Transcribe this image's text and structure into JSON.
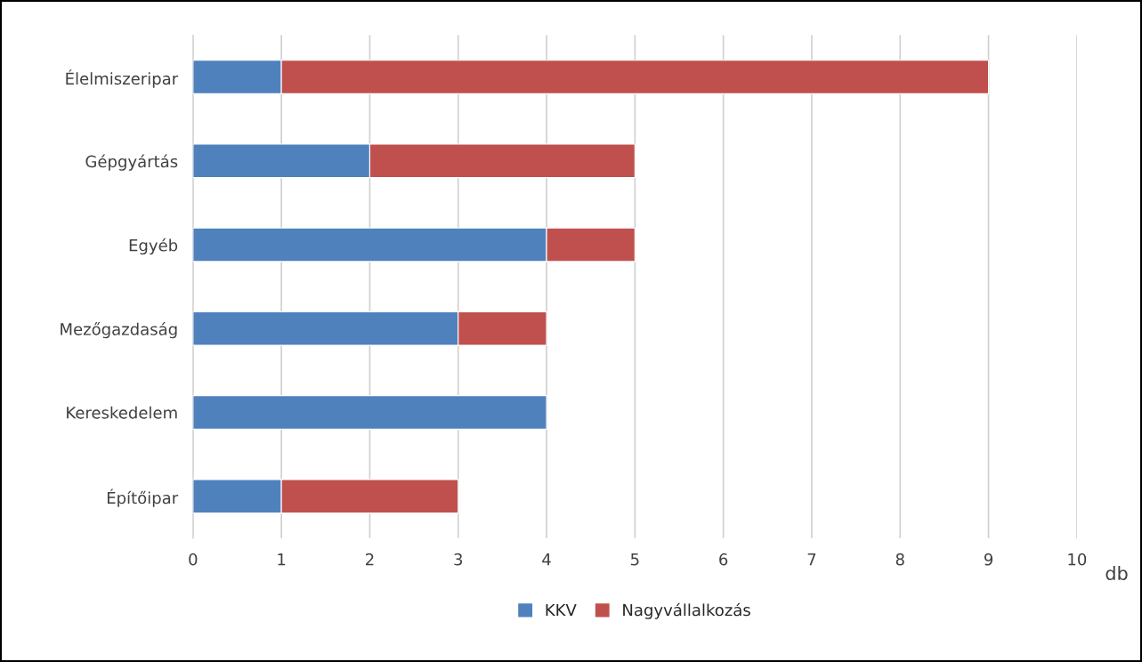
{
  "chart_data": {
    "type": "bar",
    "orientation": "horizontal",
    "stacked": true,
    "categories": [
      "Élelmiszeripar",
      "Gépgyártás",
      "Egyéb",
      "Mezőgazdaság",
      "Kereskedelem",
      "Építőipar"
    ],
    "series": [
      {
        "name": "KKV",
        "color": "#4f81bd",
        "values": [
          1,
          2,
          4,
          3,
          4,
          1
        ]
      },
      {
        "name": "Nagyvállalkozás",
        "color": "#c0504d",
        "values": [
          8,
          3,
          1,
          1,
          null,
          2
        ]
      }
    ],
    "xlabel": "db",
    "xlim": [
      0,
      10
    ],
    "xticks": [
      0,
      1,
      2,
      3,
      4,
      5,
      6,
      7,
      8,
      9,
      10
    ],
    "grid": "x",
    "legend": "bottom"
  }
}
